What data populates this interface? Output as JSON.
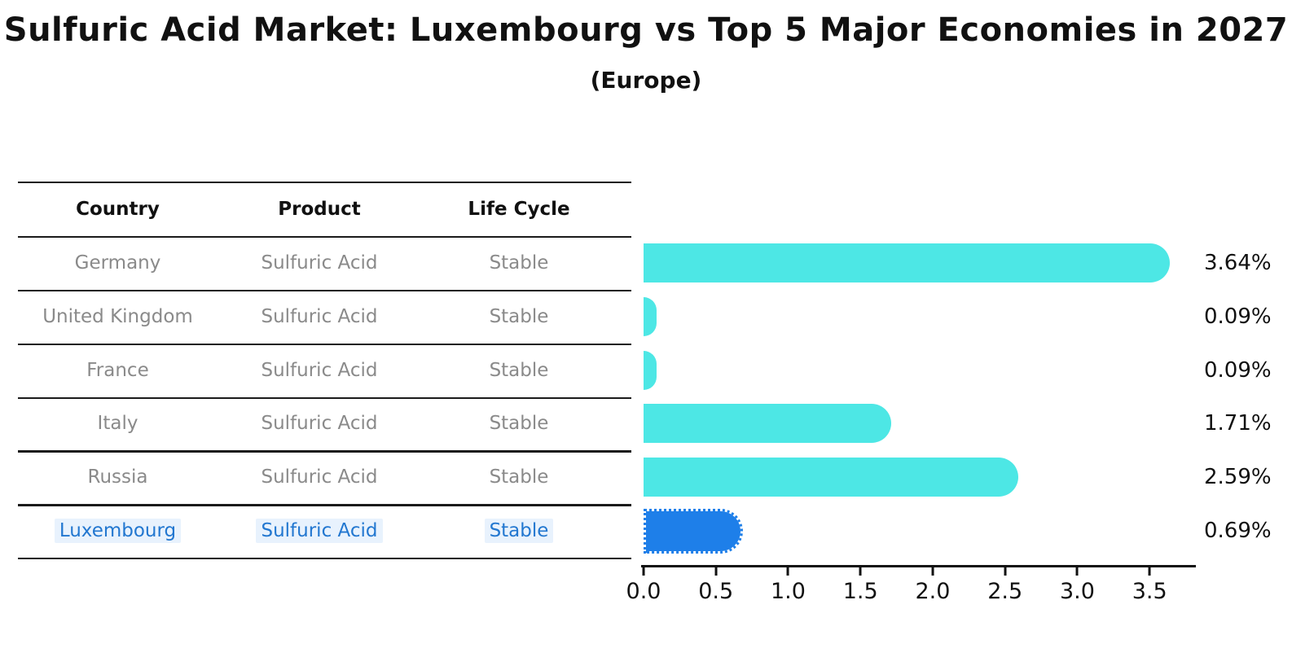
{
  "page": {
    "title": "Sulfuric Acid Market: Luxembourg vs Top 5 Major Economies in 2027",
    "subtitle": "(Europe)"
  },
  "table": {
    "columns": [
      "Country",
      "Product",
      "Life Cycle"
    ],
    "rows": [
      {
        "country": "Germany",
        "product": "Sulfuric Acid",
        "life_cycle": "Stable",
        "highlighted": false
      },
      {
        "country": "United Kingdom",
        "product": "Sulfuric Acid",
        "life_cycle": "Stable",
        "highlighted": false
      },
      {
        "country": "France",
        "product": "Sulfuric Acid",
        "life_cycle": "Stable",
        "highlighted": false
      },
      {
        "country": "Italy",
        "product": "Sulfuric Acid",
        "life_cycle": "Stable",
        "highlighted": false
      },
      {
        "country": "Russia",
        "product": "Sulfuric Acid",
        "life_cycle": "Stable",
        "highlighted": false
      },
      {
        "country": "Luxembourg",
        "product": "Sulfuric Acid",
        "life_cycle": "Stable",
        "highlighted": true
      }
    ]
  },
  "chart_data": {
    "type": "bar",
    "orientation": "horizontal",
    "title": "Sulfuric Acid Market: Luxembourg vs Top 5 Major Economies in 2027",
    "subtitle": "(Europe)",
    "categories": [
      "Germany",
      "United Kingdom",
      "France",
      "Italy",
      "Russia",
      "Luxembourg"
    ],
    "values": [
      3.64,
      0.09,
      0.09,
      1.71,
      2.59,
      0.69
    ],
    "value_labels": [
      "3.64%",
      "0.09%",
      "0.09%",
      "1.71%",
      "2.59%",
      "0.69%"
    ],
    "unit": "%",
    "xlabel": "",
    "ylabel": "",
    "xlim": [
      0,
      3.82
    ],
    "x_tick_values": [
      0,
      0.5,
      1.0,
      1.5,
      2.0,
      2.5,
      3.0,
      3.5
    ],
    "x_tick_labels": [
      "0.0",
      "0.5",
      "1.0",
      "1.5",
      "2.0",
      "2.5",
      "3.0",
      "3.5"
    ],
    "grid": false,
    "legend": false,
    "bar_color": "#4de7e5",
    "highlight_bar_color": "#1e7fe9",
    "highlight_index": 5
  },
  "colors": {
    "title_text": "#111111",
    "row_text": "#8a8a8a",
    "highlight_text": "#2277d0",
    "highlight_text_bg": "#e8f2fd",
    "axis": "#111111",
    "bar_cyan": "#4de7e5",
    "bar_blue": "#1e7fe9"
  }
}
